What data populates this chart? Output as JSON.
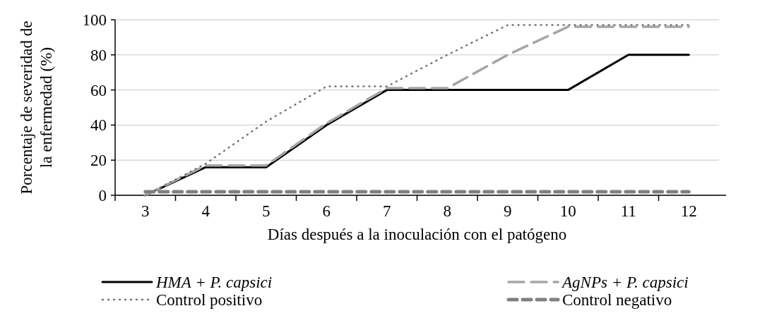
{
  "chart_data": {
    "type": "line",
    "xlabel": "Días después a la inoculación con el patógeno",
    "ylabel": "Porcentaje de severidad de\nla enfermedad (%)",
    "categories": [
      "3",
      "4",
      "5",
      "6",
      "7",
      "8",
      "9",
      "10",
      "11",
      "12"
    ],
    "series": [
      {
        "name": "HMA + P. capsici",
        "color": "#000000",
        "line_style": "solid",
        "values": [
          0,
          16,
          16,
          40,
          60,
          60,
          60,
          60,
          80,
          80
        ]
      },
      {
        "name": "AgNPs + P. capsici",
        "color": "#a6a6a6",
        "line_style": "dashed",
        "values": [
          0,
          17,
          17,
          41,
          61,
          61,
          80,
          96,
          96,
          96
        ]
      },
      {
        "name": "Control positivo",
        "color": "#767676",
        "line_style": "dotted",
        "values": [
          0,
          18,
          42,
          62,
          62,
          80,
          97,
          97,
          97,
          97
        ]
      },
      {
        "name": "Control negativo",
        "color": "#808080",
        "line_style": "dashed",
        "values": [
          2,
          2,
          2,
          2,
          2,
          2,
          2,
          2,
          2,
          2
        ]
      }
    ],
    "ylim": [
      0,
      100
    ],
    "yticks": [
      0,
      20,
      40,
      60,
      80,
      100
    ],
    "grid": "y",
    "legend": "bottom"
  }
}
